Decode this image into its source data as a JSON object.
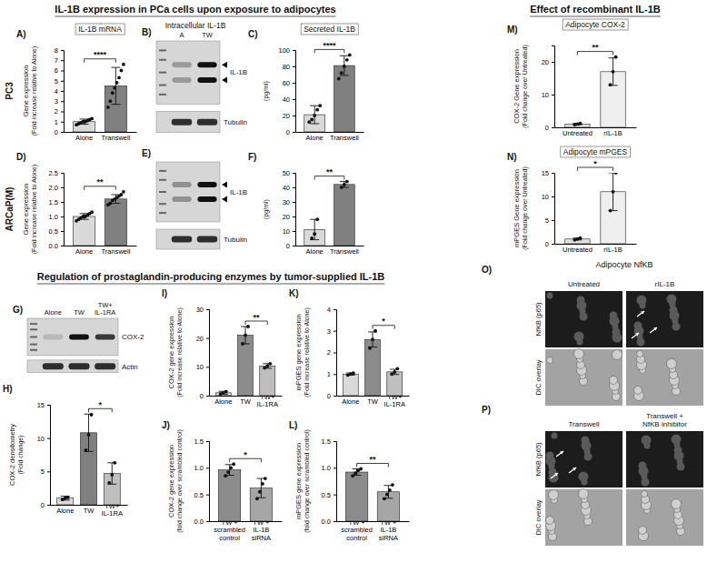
{
  "headings": [
    "IL-1B expression in PCa cells upon exposure to adipocytes",
    "Effect of recombinant IL-1B",
    "Regulation of prostaglandin-producing enzymes by tumor-supplied IL-1B"
  ],
  "row_labels": [
    "PC3",
    "ARCaP(M)"
  ],
  "blots": [
    {
      "panel": "B)",
      "title": "Intracellular IL-1B",
      "lanes": [
        "A",
        "TW"
      ],
      "bands": [
        "IL-1B",
        "Tubulin"
      ]
    },
    {
      "panel": "E)",
      "bands": [
        "IL-1B",
        "Tubulin"
      ]
    },
    {
      "panel": "G)",
      "lanes": [
        "Alone",
        "TW",
        "TW+ IL-1RA"
      ],
      "bands": [
        "COX-2",
        "Actin"
      ]
    }
  ],
  "micrographs": [
    {
      "panel": "O)",
      "title": "Adipocyte NfKB",
      "columns": [
        "Untreated",
        "rIL-1B"
      ],
      "rows": [
        "NfKB (p65)",
        "DIC overlay"
      ]
    },
    {
      "panel": "P)",
      "columns": [
        "Transwell",
        "Transwell + NfKB inhibitor"
      ],
      "rows": [
        "NfKB (p65)",
        "DIC overlay"
      ]
    }
  ],
  "chart_data": [
    {
      "type": "bar",
      "panel": "A)",
      "title": "IL-1B mRNA",
      "y_label": [
        "Gene expression",
        "(Fold increase relative to Alone)"
      ],
      "categories": [
        "Alone",
        "Transwell"
      ],
      "values": [
        1.0,
        4.5
      ],
      "errors": [
        0.25,
        1.8
      ],
      "points": [
        [
          0.7,
          0.8,
          0.9,
          1.0,
          1.0,
          1.1,
          1.2,
          1.3
        ],
        [
          2.4,
          3.0,
          3.8,
          4.3,
          4.8,
          5.3,
          6.0,
          6.6
        ]
      ],
      "colors": [
        "#d9d9d9",
        "#808080"
      ],
      "ylim": [
        0,
        8
      ],
      "yticks": [
        0,
        1,
        2,
        3,
        4,
        5,
        6,
        7,
        8
      ],
      "significance": [
        {
          "label": "****",
          "between": [
            "Alone",
            "Transwell"
          ]
        }
      ]
    },
    {
      "type": "bar",
      "panel": "C)",
      "title": "Secreted IL-1B",
      "y_label": [
        "(pg/ml)"
      ],
      "categories": [
        "Alone",
        "Transwell"
      ],
      "values": [
        21,
        81
      ],
      "errors": [
        11,
        12
      ],
      "points": [
        [
          12,
          15,
          20,
          27,
          32
        ],
        [
          65,
          72,
          80,
          88,
          94
        ]
      ],
      "colors": [
        "#d9d9d9",
        "#808080"
      ],
      "ylim": [
        0,
        100
      ],
      "yticks": [
        0,
        20,
        40,
        60,
        80,
        100
      ],
      "significance": [
        {
          "label": "****",
          "between": [
            "Alone",
            "Transwell"
          ]
        }
      ]
    },
    {
      "type": "bar",
      "panel": "D)",
      "y_label": [
        "Gene expression",
        "(Fold increase relative to Alone)"
      ],
      "categories": [
        "Alone",
        "Transwell"
      ],
      "values": [
        1.0,
        1.6
      ],
      "errors": [
        0.1,
        0.15
      ],
      "points": [
        [
          0.85,
          0.9,
          0.95,
          1.0,
          1.0,
          1.05,
          1.1,
          1.15
        ],
        [
          1.4,
          1.45,
          1.55,
          1.6,
          1.65,
          1.7,
          1.75,
          1.85
        ]
      ],
      "colors": [
        "#d9d9d9",
        "#808080"
      ],
      "ylim": [
        0,
        2.5
      ],
      "yticks": [
        {
          "value": 0,
          "label": "0.0"
        },
        {
          "value": 0.5,
          "label": "0.5"
        },
        {
          "value": 1,
          "label": "1.0"
        },
        {
          "value": 1.5,
          "label": "1.5"
        },
        {
          "value": 2,
          "label": "2.0"
        },
        {
          "value": 2.5,
          "label": "2.5"
        }
      ],
      "significance": [
        {
          "label": "**",
          "between": [
            "Alone",
            "Transwell"
          ]
        }
      ]
    },
    {
      "type": "bar",
      "panel": "F)",
      "y_label": [
        "(pg/ml)"
      ],
      "categories": [
        "Alone",
        "Transwell"
      ],
      "values": [
        11,
        42
      ],
      "errors": [
        7,
        2
      ],
      "points": [
        [
          5,
          8,
          18
        ],
        [
          40,
          42,
          44
        ]
      ],
      "colors": [
        "#d9d9d9",
        "#808080"
      ],
      "ylim": [
        0,
        50
      ],
      "yticks": [
        0,
        10,
        20,
        30,
        40,
        50
      ],
      "significance": [
        {
          "label": "**",
          "between": [
            "Alone",
            "Transwell"
          ]
        }
      ]
    },
    {
      "type": "bar",
      "panel": "H)",
      "y_label": [
        "COX-2 densitometry",
        "(Fold change)"
      ],
      "categories": [
        "Alone",
        "TW",
        "TW+ IL-1RA"
      ],
      "values": [
        1.0,
        10.8,
        4.7
      ],
      "errors": [
        0.3,
        2.8,
        1.6
      ],
      "points": [
        [
          0.8,
          1.0,
          1.1
        ],
        [
          8.2,
          10.5,
          13.5
        ],
        [
          3.3,
          4.5,
          6.3
        ]
      ],
      "colors": [
        "#d9d9d9",
        "#808080",
        "#bfbfbf"
      ],
      "ylim": [
        0,
        15
      ],
      "yticks": [
        0,
        5,
        10,
        15
      ],
      "significance": [
        {
          "label": "*",
          "between": [
            "TW",
            "TW+ IL-1RA"
          ]
        }
      ]
    },
    {
      "type": "bar",
      "panel": "I)",
      "y_label": [
        "COX-2 gene expression",
        "(Fold increase relative to Alone)"
      ],
      "categories": [
        "Alone",
        "TW",
        "TW+ IL-1RA"
      ],
      "values": [
        1.0,
        21,
        10.3
      ],
      "errors": [
        0.5,
        3,
        0.8
      ],
      "points": [
        [
          0.6,
          1.0,
          1.4
        ],
        [
          18,
          21,
          24
        ],
        [
          9.6,
          10.3,
          11.1
        ]
      ],
      "colors": [
        "#d9d9d9",
        "#8c8c8c",
        "#bfbfbf"
      ],
      "ylim": [
        0,
        30
      ],
      "yticks": [
        0,
        10,
        20,
        30
      ],
      "significance": [
        {
          "label": "**",
          "between": [
            "TW",
            "TW+ IL-1RA"
          ]
        }
      ]
    },
    {
      "type": "bar",
      "panel": "J)",
      "y_label": [
        "COX-2 gene expression",
        "(fold change over scrambled control)"
      ],
      "categories": [
        "TW + scrambled control",
        "TW + IL-1B siRNA"
      ],
      "values": [
        0.96,
        0.62
      ],
      "errors": [
        0.1,
        0.18
      ],
      "points": [
        [
          0.85,
          0.92,
          1.0,
          1.07
        ],
        [
          0.42,
          0.55,
          0.7,
          0.8
        ]
      ],
      "colors": [
        "#8c8c8c",
        "#a6a6a6"
      ],
      "ylim": [
        0,
        1.5
      ],
      "yticks": [
        {
          "value": 0,
          "label": "0.0"
        },
        {
          "value": 0.5,
          "label": "0.5"
        },
        {
          "value": 1,
          "label": "1.0"
        },
        {
          "value": 1.5,
          "label": "1.5"
        }
      ],
      "significance": [
        {
          "label": "*",
          "between": [
            "TW + scrambled control",
            "TW + IL-1B siRNA"
          ]
        }
      ]
    },
    {
      "type": "bar",
      "panel": "K)",
      "y_label": [
        "mPGES gene expression",
        "(Fold increase relative to Alone)"
      ],
      "categories": [
        "Alone",
        "TW",
        "TW+ IL-1RA"
      ],
      "values": [
        1.0,
        2.6,
        1.1
      ],
      "errors": [
        0.05,
        0.35,
        0.12
      ],
      "points": [
        [
          0.95,
          1.0,
          1.05
        ],
        [
          2.2,
          2.6,
          3.0
        ],
        [
          1.0,
          1.1,
          1.25
        ]
      ],
      "colors": [
        "#d9d9d9",
        "#8c8c8c",
        "#bfbfbf"
      ],
      "ylim": [
        0,
        4
      ],
      "yticks": [
        0,
        1,
        2,
        3,
        4
      ],
      "significance": [
        {
          "label": "*",
          "between": [
            "TW",
            "TW+ IL-1RA"
          ]
        }
      ]
    },
    {
      "type": "bar",
      "panel": "L)",
      "y_label": [
        "mPGES gene expression",
        "(fold change over scrambled control)"
      ],
      "categories": [
        "TW + scrambled control",
        "TW + IL-1B siRNA"
      ],
      "values": [
        0.92,
        0.55
      ],
      "errors": [
        0.06,
        0.12
      ],
      "points": [
        [
          0.85,
          0.9,
          0.95,
          0.98
        ],
        [
          0.42,
          0.5,
          0.58,
          0.68
        ]
      ],
      "colors": [
        "#8c8c8c",
        "#a6a6a6"
      ],
      "ylim": [
        0,
        1.5
      ],
      "yticks": [
        {
          "value": 0,
          "label": "0.0"
        },
        {
          "value": 0.5,
          "label": "0.5"
        },
        {
          "value": 1,
          "label": "1.0"
        },
        {
          "value": 1.5,
          "label": "1.5"
        }
      ],
      "significance": [
        {
          "label": "**",
          "between": [
            "TW + scrambled control",
            "TW + IL-1B siRNA"
          ]
        }
      ]
    },
    {
      "type": "bar",
      "panel": "M)",
      "title": "Adipocyte COX-2",
      "y_label": [
        "COX-2 Gene expression",
        "(Fold change over Untreated)"
      ],
      "categories": [
        "Untreated",
        "rIL-1B"
      ],
      "values": [
        1.0,
        17
      ],
      "errors": [
        0.2,
        4.2
      ],
      "points": [
        [
          0.8,
          1.0,
          1.2
        ],
        [
          13,
          17,
          21.5
        ]
      ],
      "colors": [
        "#e0e0e0",
        "#efefef"
      ],
      "ylim": [
        0,
        25
      ],
      "yticks": [
        0,
        10,
        20
      ],
      "significance": [
        {
          "label": "**",
          "between": [
            "Untreated",
            "rIL-1B"
          ]
        }
      ]
    },
    {
      "type": "bar",
      "panel": "N)",
      "title": "Adipocyte mPGES",
      "y_label": [
        "mPGES Gene expression",
        "(Fold change over Untreated)"
      ],
      "categories": [
        "Untreated",
        "rIL-1B"
      ],
      "values": [
        1.0,
        11
      ],
      "errors": [
        0.2,
        4
      ],
      "points": [
        [
          0.8,
          1.0,
          1.2
        ],
        [
          7,
          11,
          15
        ]
      ],
      "colors": [
        "#e0e0e0",
        "#efefef"
      ],
      "ylim": [
        0,
        15
      ],
      "yticks": [
        0,
        5,
        10,
        15
      ],
      "significance": [
        {
          "label": "*",
          "between": [
            "Untreated",
            "rIL-1B"
          ]
        }
      ]
    }
  ]
}
